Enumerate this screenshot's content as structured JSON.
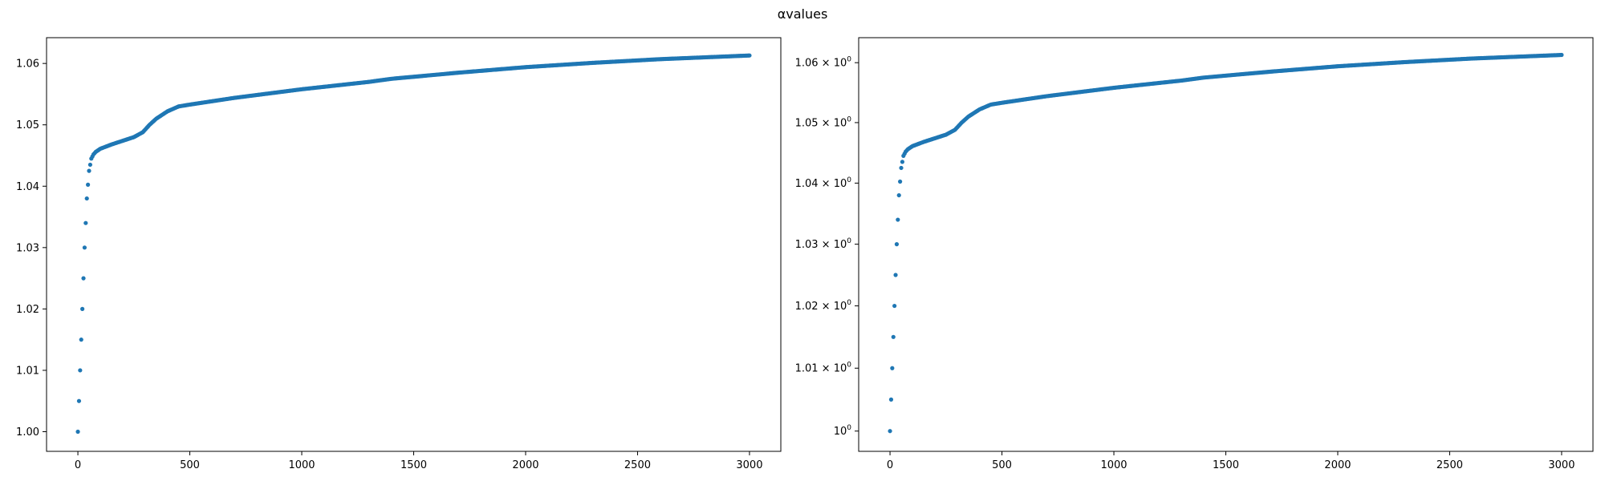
{
  "figure": {
    "suptitle": "αvalues"
  },
  "chart_data": [
    {
      "type": "scatter",
      "title": "",
      "xlabel": "",
      "ylabel": "",
      "xlim": [
        -140,
        3140
      ],
      "ylim": [
        0.9968,
        1.0642
      ],
      "yscale": "linear",
      "grid": false,
      "legend": "none",
      "color": "#1f77b4",
      "x_ticks": [
        0,
        500,
        1000,
        1500,
        2000,
        2500,
        3000
      ],
      "y_ticks": [
        1.0,
        1.01,
        1.02,
        1.03,
        1.04,
        1.05,
        1.06
      ],
      "x_tick_labels": [
        "0",
        "500",
        "1000",
        "1500",
        "2000",
        "2500",
        "3000"
      ],
      "y_tick_labels": [
        "1.00",
        "1.01",
        "1.02",
        "1.03",
        "1.04",
        "1.05",
        "1.06"
      ],
      "series": [
        {
          "x": [
            0,
            10,
            20,
            30,
            40,
            50,
            60,
            70,
            80,
            100,
            150,
            200,
            250,
            290,
            320,
            350,
            400,
            450,
            500,
            700,
            1000,
            1300,
            1400,
            1700,
            2000,
            2300,
            2600,
            3000
          ],
          "values": [
            1.0,
            1.01,
            1.02,
            1.03,
            1.038,
            1.0425,
            1.0445,
            1.0452,
            1.0456,
            1.0461,
            1.0468,
            1.0474,
            1.048,
            1.0488,
            1.05,
            1.051,
            1.0522,
            1.053,
            1.0533,
            1.0544,
            1.0558,
            1.057,
            1.0575,
            1.0585,
            1.0594,
            1.0601,
            1.0607,
            1.0613
          ]
        }
      ]
    },
    {
      "type": "scatter",
      "title": "",
      "xlabel": "",
      "ylabel": "",
      "xlim": [
        -140,
        3140
      ],
      "ylim": [
        0.9968,
        1.0642
      ],
      "yscale": "log",
      "grid": false,
      "legend": "none",
      "color": "#1f77b4",
      "x_ticks": [
        0,
        500,
        1000,
        1500,
        2000,
        2500,
        3000
      ],
      "y_ticks": [
        1.0,
        1.01,
        1.02,
        1.03,
        1.04,
        1.05,
        1.06
      ],
      "x_tick_labels": [
        "0",
        "500",
        "1000",
        "1500",
        "2000",
        "2500",
        "3000"
      ],
      "y_tick_labels": [
        {
          "base": "10",
          "exp": "0"
        },
        {
          "base": "1.01 × 10",
          "exp": "0"
        },
        {
          "base": "1.02 × 10",
          "exp": "0"
        },
        {
          "base": "1.03 × 10",
          "exp": "0"
        },
        {
          "base": "1.04 × 10",
          "exp": "0"
        },
        {
          "base": "1.05 × 10",
          "exp": "0"
        },
        {
          "base": "1.06 × 10",
          "exp": "0"
        }
      ],
      "series": [
        {
          "x": [
            0,
            10,
            20,
            30,
            40,
            50,
            60,
            70,
            80,
            100,
            150,
            200,
            250,
            290,
            320,
            350,
            400,
            450,
            500,
            700,
            1000,
            1300,
            1400,
            1700,
            2000,
            2300,
            2600,
            3000
          ],
          "values": [
            1.0,
            1.01,
            1.02,
            1.03,
            1.038,
            1.0425,
            1.0445,
            1.0452,
            1.0456,
            1.0461,
            1.0468,
            1.0474,
            1.048,
            1.0488,
            1.05,
            1.051,
            1.0522,
            1.053,
            1.0533,
            1.0544,
            1.0558,
            1.057,
            1.0575,
            1.0585,
            1.0594,
            1.0601,
            1.0607,
            1.0613
          ]
        }
      ]
    }
  ]
}
